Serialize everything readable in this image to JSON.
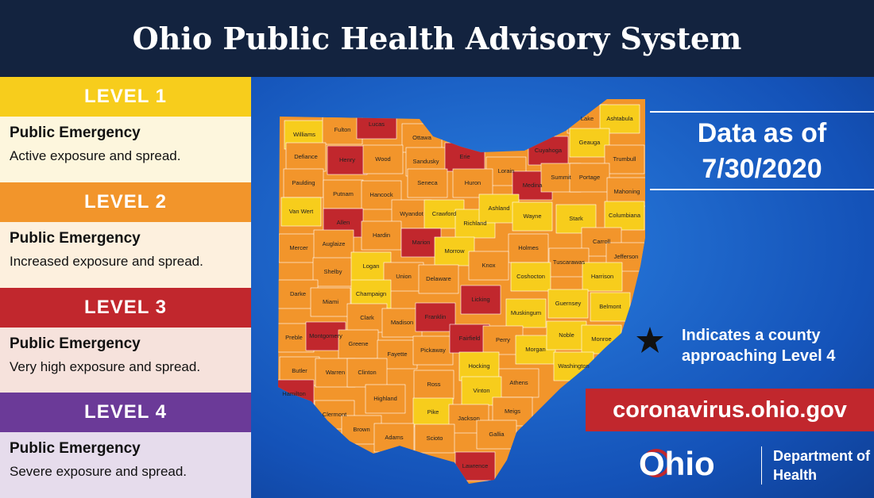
{
  "title": "Ohio Public Health Advisory System",
  "levels": [
    {
      "label": "LEVEL 1",
      "heading": "Public Emergency",
      "description": "Active exposure and spread.",
      "color": "#f7cd1c",
      "body_color": "#fdf6dd"
    },
    {
      "label": "LEVEL 2",
      "heading": "Public Emergency",
      "description": "Increased exposure and spread.",
      "color": "#f2952b",
      "body_color": "#fdf0de"
    },
    {
      "label": "LEVEL 3",
      "heading": "Public Emergency",
      "description": "Very high exposure and spread.",
      "color": "#c1272d",
      "body_color": "#f6e2dc"
    },
    {
      "label": "LEVEL 4",
      "heading": "Public Emergency",
      "description": "Severe exposure and spread.",
      "color": "#6b3a98",
      "body_color": "#e6dcec"
    }
  ],
  "date_caption": "Data as of",
  "date": "7/30/2020",
  "star_note": "Indicates a county approaching Level 4",
  "website": "coronavirus.ohio.gov",
  "logo": {
    "state": "Ohio",
    "department": "Department of Health"
  },
  "counties": [
    {
      "name": "Williams",
      "level": 1
    },
    {
      "name": "Fulton",
      "level": 2
    },
    {
      "name": "Lucas",
      "level": 3
    },
    {
      "name": "Ottawa",
      "level": 2
    },
    {
      "name": "Defiance",
      "level": 2
    },
    {
      "name": "Henry",
      "level": 3
    },
    {
      "name": "Wood",
      "level": 2
    },
    {
      "name": "Sandusky",
      "level": 2
    },
    {
      "name": "Erie",
      "level": 3
    },
    {
      "name": "Lorain",
      "level": 2
    },
    {
      "name": "Cuyahoga",
      "level": 3
    },
    {
      "name": "Lake",
      "level": 2
    },
    {
      "name": "Ashtabula",
      "level": 1
    },
    {
      "name": "Geauga",
      "level": 1
    },
    {
      "name": "Trumbull",
      "level": 2
    },
    {
      "name": "Paulding",
      "level": 2
    },
    {
      "name": "Putnam",
      "level": 2
    },
    {
      "name": "Hancock",
      "level": 2
    },
    {
      "name": "Seneca",
      "level": 2
    },
    {
      "name": "Huron",
      "level": 2
    },
    {
      "name": "Medina",
      "level": 3
    },
    {
      "name": "Summit",
      "level": 2
    },
    {
      "name": "Portage",
      "level": 2
    },
    {
      "name": "Mahoning",
      "level": 2
    },
    {
      "name": "Van Wert",
      "level": 1
    },
    {
      "name": "Allen",
      "level": 3
    },
    {
      "name": "Wyandot",
      "level": 2
    },
    {
      "name": "Crawford",
      "level": 1
    },
    {
      "name": "Richland",
      "level": 1
    },
    {
      "name": "Ashland",
      "level": 1
    },
    {
      "name": "Wayne",
      "level": 1
    },
    {
      "name": "Stark",
      "level": 1
    },
    {
      "name": "Columbiana",
      "level": 1
    },
    {
      "name": "Mercer",
      "level": 2
    },
    {
      "name": "Auglaize",
      "level": 2
    },
    {
      "name": "Hardin",
      "level": 2
    },
    {
      "name": "Marion",
      "level": 3
    },
    {
      "name": "Morrow",
      "level": 1
    },
    {
      "name": "Holmes",
      "level": 2
    },
    {
      "name": "Carroll",
      "level": 2
    },
    {
      "name": "Tuscarawas",
      "level": 2
    },
    {
      "name": "Jefferson",
      "level": 2
    },
    {
      "name": "Shelby",
      "level": 2
    },
    {
      "name": "Logan",
      "level": 1
    },
    {
      "name": "Union",
      "level": 2
    },
    {
      "name": "Delaware",
      "level": 2
    },
    {
      "name": "Knox",
      "level": 2
    },
    {
      "name": "Coshocton",
      "level": 1
    },
    {
      "name": "Harrison",
      "level": 1
    },
    {
      "name": "Darke",
      "level": 2
    },
    {
      "name": "Miami",
      "level": 2
    },
    {
      "name": "Champaign",
      "level": 1
    },
    {
      "name": "Licking",
      "level": 3
    },
    {
      "name": "Muskingum",
      "level": 1
    },
    {
      "name": "Guernsey",
      "level": 1
    },
    {
      "name": "Belmont",
      "level": 1
    },
    {
      "name": "Clark",
      "level": 2
    },
    {
      "name": "Madison",
      "level": 2
    },
    {
      "name": "Franklin",
      "level": 3
    },
    {
      "name": "Preble",
      "level": 2
    },
    {
      "name": "Montgomery",
      "level": 3
    },
    {
      "name": "Greene",
      "level": 2
    },
    {
      "name": "Fayette",
      "level": 2
    },
    {
      "name": "Pickaway",
      "level": 2
    },
    {
      "name": "Fairfield",
      "level": 3
    },
    {
      "name": "Perry",
      "level": 2
    },
    {
      "name": "Morgan",
      "level": 1
    },
    {
      "name": "Noble",
      "level": 1
    },
    {
      "name": "Monroe",
      "level": 1
    },
    {
      "name": "Butler",
      "level": 2
    },
    {
      "name": "Warren",
      "level": 2
    },
    {
      "name": "Clinton",
      "level": 2
    },
    {
      "name": "Hocking",
      "level": 1
    },
    {
      "name": "Washington",
      "level": 1
    },
    {
      "name": "Athens",
      "level": 2
    },
    {
      "name": "Ross",
      "level": 2
    },
    {
      "name": "Vinton",
      "level": 1
    },
    {
      "name": "Highland",
      "level": 2
    },
    {
      "name": "Hamilton",
      "level": 3
    },
    {
      "name": "Clermont",
      "level": 2
    },
    {
      "name": "Pike",
      "level": 1
    },
    {
      "name": "Jackson",
      "level": 2
    },
    {
      "name": "Meigs",
      "level": 2
    },
    {
      "name": "Brown",
      "level": 2
    },
    {
      "name": "Adams",
      "level": 2
    },
    {
      "name": "Scioto",
      "level": 2
    },
    {
      "name": "Gallia",
      "level": 2
    },
    {
      "name": "Lawrence",
      "level": 3
    }
  ]
}
